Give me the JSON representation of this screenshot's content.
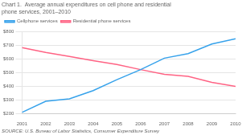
{
  "chart_data": {
    "type": "line",
    "title": "Chart 1.  Average annual expenditures on cell phone and residential\nphone services, 2001–2010",
    "source": "SOURCE: U.S. Bureau of Labor Statistics, Consumer Expenditure Survey",
    "x": [
      2001,
      2002,
      2003,
      2004,
      2005,
      2006,
      2007,
      2008,
      2009,
      2010
    ],
    "series": [
      {
        "name": "Cellphone services",
        "values": [
          210,
          292,
          310,
          370,
          450,
          524,
          608,
          641,
          712,
          750
        ]
      },
      {
        "name": "Residential phone services",
        "values": [
          686,
          650,
          620,
          590,
          562,
          524,
          490,
          474,
          430,
          401
        ]
      }
    ],
    "xlim": [
      2001,
      2010
    ],
    "xticks": [
      2001,
      2002,
      2003,
      2004,
      2005,
      2006,
      2007,
      2008,
      2009,
      2010
    ],
    "ylim": [
      200,
      800
    ],
    "yticks": [
      {
        "value": 200,
        "label": "$200"
      },
      {
        "value": 300,
        "label": "$300"
      },
      {
        "value": 400,
        "label": "$400"
      },
      {
        "value": 500,
        "label": "$500"
      },
      {
        "value": 600,
        "label": "$600"
      },
      {
        "value": 700,
        "label": "$700"
      },
      {
        "value": 800,
        "label": "$800"
      }
    ],
    "grid": "y",
    "legend": "top"
  }
}
